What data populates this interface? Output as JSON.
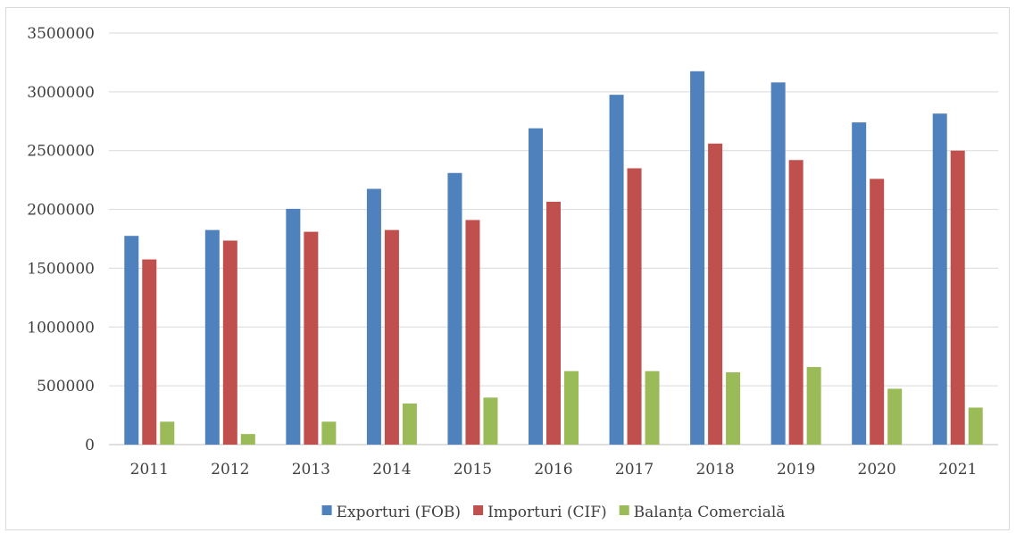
{
  "chart_data": {
    "type": "bar",
    "title": "",
    "xlabel": "",
    "ylabel": "",
    "ylim": [
      0,
      3500000
    ],
    "yticks": [
      0,
      500000,
      1000000,
      1500000,
      2000000,
      2500000,
      3000000,
      3500000
    ],
    "grid": true,
    "legend_position": "bottom",
    "categories": [
      "2011",
      "2012",
      "2013",
      "2014",
      "2015",
      "2016",
      "2017",
      "2018",
      "2019",
      "2020",
      "2021"
    ],
    "series": [
      {
        "name": "Exporturi (FOB)",
        "color": "#4f81bd",
        "values": [
          1775000,
          1825000,
          2005000,
          2175000,
          2310000,
          2690000,
          2975000,
          3175000,
          3080000,
          2740000,
          2815000
        ]
      },
      {
        "name": "Importuri (CIF)",
        "color": "#c0504d",
        "values": [
          1575000,
          1735000,
          1810000,
          1825000,
          1910000,
          2065000,
          2350000,
          2560000,
          2420000,
          2260000,
          2500000
        ]
      },
      {
        "name": "Balanța Comercială",
        "color": "#9bbb59",
        "values": [
          195000,
          90000,
          195000,
          350000,
          400000,
          625000,
          625000,
          615000,
          660000,
          475000,
          315000
        ]
      }
    ]
  }
}
